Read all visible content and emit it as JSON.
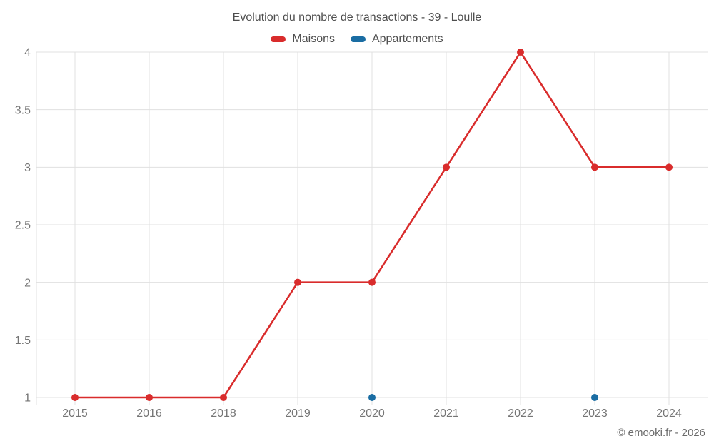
{
  "chart_data": {
    "type": "line",
    "title": "Evolution du nombre de transactions - 39 - Loulle",
    "categories": [
      "2015",
      "2016",
      "2018",
      "2019",
      "2020",
      "2021",
      "2022",
      "2023",
      "2024"
    ],
    "series": [
      {
        "name": "Maisons",
        "color": "#d92c2c",
        "values": [
          1,
          1,
          1,
          2,
          2,
          3,
          4,
          3,
          3
        ]
      },
      {
        "name": "Appartements",
        "color": "#1a6da3",
        "values": [
          null,
          null,
          null,
          null,
          1,
          null,
          null,
          1,
          null
        ]
      }
    ],
    "yticks": [
      1,
      1.5,
      2,
      2.5,
      3,
      3.5,
      4
    ],
    "ylim": [
      1,
      4
    ],
    "grid": true,
    "legend_position": "top",
    "xlabel": "",
    "ylabel": ""
  },
  "footer": {
    "copyright": "© emooki.fr - 2026"
  },
  "colors": {
    "grid": "#e0e0e0",
    "axis_text": "#757575",
    "title_text": "#4e4e4e",
    "footer_text": "#6b6b6b"
  }
}
